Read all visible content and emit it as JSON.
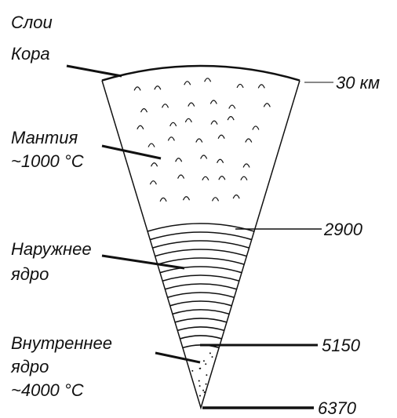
{
  "title": "Слои",
  "layers": [
    {
      "lines": [
        "Кора"
      ]
    },
    {
      "lines": [
        "Мантия",
        "~1000 °C"
      ]
    },
    {
      "lines": [
        "Наружнее",
        "ядро"
      ]
    },
    {
      "lines": [
        "Внутреннее",
        "ядро",
        "~4000 °C"
      ]
    }
  ],
  "depths": [
    "30 км",
    "2900",
    "5150",
    "6370"
  ]
}
